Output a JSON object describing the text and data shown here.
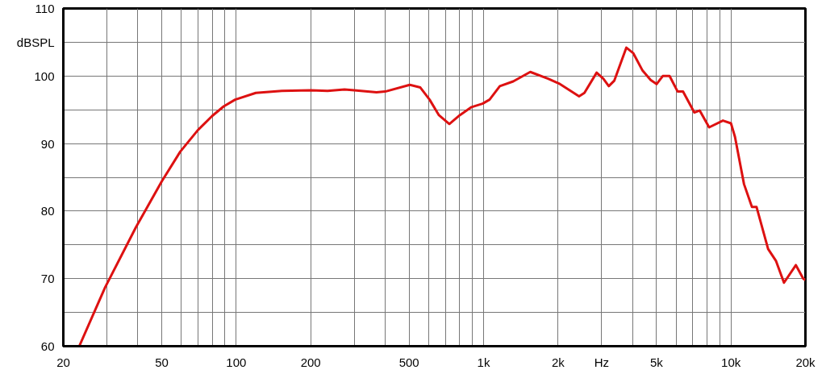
{
  "chart_data": {
    "type": "line",
    "log": "x",
    "grid": true,
    "line_style": "solid",
    "xlim": [
      20,
      20000
    ],
    "ylim": [
      60,
      110
    ],
    "xticks": [
      20,
      {
        "value": 30,
        "label": null
      },
      {
        "value": 40,
        "label": null
      },
      50,
      {
        "value": 60,
        "label": null
      },
      {
        "value": 70,
        "label": null
      },
      {
        "value": 80,
        "label": null
      },
      {
        "value": 90,
        "label": null
      },
      100,
      200,
      {
        "value": 300,
        "label": null
      },
      {
        "value": 400,
        "label": null
      },
      500,
      {
        "value": 600,
        "label": null
      },
      {
        "value": 700,
        "label": null
      },
      {
        "value": 800,
        "label": null
      },
      {
        "value": 900,
        "label": null
      },
      {
        "value": 1000,
        "label": "1k"
      },
      {
        "value": 2000,
        "label": "2k"
      },
      {
        "value": 3000,
        "label": "Hz"
      },
      {
        "value": 4000,
        "label": null
      },
      {
        "value": 5000,
        "label": "5k"
      },
      {
        "value": 6000,
        "label": null
      },
      {
        "value": 7000,
        "label": null
      },
      {
        "value": 8000,
        "label": null
      },
      {
        "value": 9000,
        "label": null
      },
      {
        "value": 10000,
        "label": "10k"
      },
      {
        "value": 20000,
        "label": "20k"
      }
    ],
    "yticks": [
      60,
      {
        "value": 65,
        "label": null
      },
      70,
      {
        "value": 75,
        "label": null
      },
      80,
      {
        "value": 85,
        "label": null
      },
      90,
      {
        "value": 95,
        "label": null
      },
      100,
      {
        "value": 105,
        "label": "dBSPL"
      },
      110
    ],
    "series": [
      {
        "color": "#dd1111",
        "x": [
          23.2,
          29.5,
          39.3,
          50,
          59.4,
          70,
          80,
          89,
          99,
          120,
          153,
          200,
          234,
          274,
          300,
          369,
          400,
          503,
          555,
          605,
          660,
          727,
          801,
          894,
          990,
          1057,
          1163,
          1317,
          1544,
          1823,
          2017,
          2432,
          2556,
          2864,
          3048,
          3207,
          3374,
          3777,
          4024,
          4392,
          4736,
          5003,
          5300,
          5647,
          6088,
          6400,
          7109,
          7472,
          8162,
          9278,
          10000,
          10380,
          11290,
          12160,
          12690,
          14130,
          15220,
          16380,
          18300,
          19600,
          20000
        ],
        "values": [
          60,
          68.7,
          77.6,
          84.4,
          88.8,
          92.0,
          94.1,
          95.5,
          96.5,
          97.5,
          97.8,
          97.9,
          97.8,
          98.0,
          97.9,
          97.6,
          97.7,
          98.7,
          98.3,
          96.5,
          94.2,
          92.9,
          94.2,
          95.4,
          95.9,
          96.5,
          98.5,
          99.2,
          100.6,
          99.6,
          98.9,
          97.0,
          97.5,
          100.5,
          99.6,
          98.5,
          99.3,
          104.2,
          103.4,
          100.8,
          99.4,
          98.8,
          100.0,
          100.0,
          97.7,
          97.7,
          94.6,
          94.9,
          92.4,
          93.4,
          93.0,
          91.0,
          84.0,
          80.6,
          80.6,
          74.4,
          72.6,
          69.4,
          72.0,
          70.0,
          69.8
        ]
      }
    ]
  }
}
